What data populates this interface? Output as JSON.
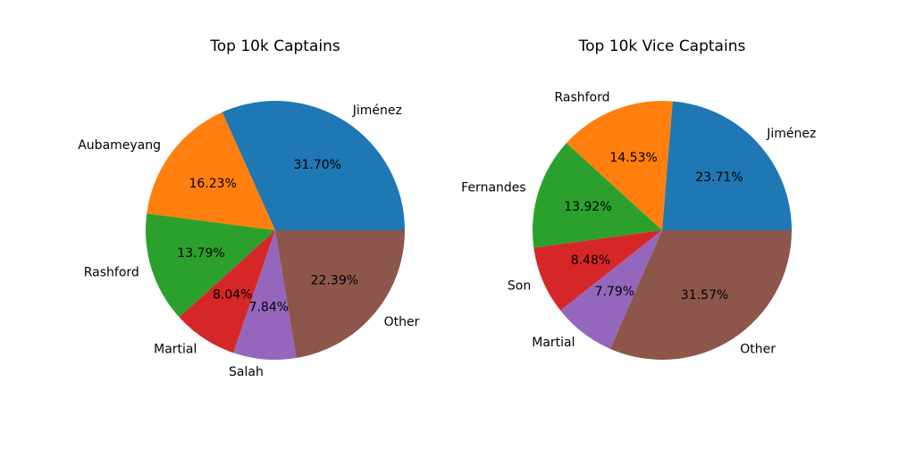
{
  "chart_data": [
    {
      "type": "pie",
      "title": "Top 10k Captains",
      "start_angle_deg": 0,
      "direction": "counterclockwise",
      "slices": [
        {
          "label": "Jiménez",
          "value": 31.7,
          "pct_text": "31.70%",
          "color": "#1f77b4"
        },
        {
          "label": "Aubameyang",
          "value": 16.23,
          "pct_text": "16.23%",
          "color": "#ff7f0e"
        },
        {
          "label": "Rashford",
          "value": 13.79,
          "pct_text": "13.79%",
          "color": "#2ca02c"
        },
        {
          "label": "Martial",
          "value": 8.04,
          "pct_text": "8.04%",
          "color": "#d62728"
        },
        {
          "label": "Salah",
          "value": 7.84,
          "pct_text": "7.84%",
          "color": "#9467bd"
        },
        {
          "label": "Other",
          "value": 22.39,
          "pct_text": "22.39%",
          "color": "#8c564b"
        }
      ]
    },
    {
      "type": "pie",
      "title": "Top 10k Vice Captains",
      "start_angle_deg": 0,
      "direction": "counterclockwise",
      "slices": [
        {
          "label": "Jiménez",
          "value": 23.71,
          "pct_text": "23.71%",
          "color": "#1f77b4"
        },
        {
          "label": "Rashford",
          "value": 14.53,
          "pct_text": "14.53%",
          "color": "#ff7f0e"
        },
        {
          "label": "Fernandes",
          "value": 13.92,
          "pct_text": "13.92%",
          "color": "#2ca02c"
        },
        {
          "label": "Son",
          "value": 8.48,
          "pct_text": "8.48%",
          "color": "#d62728"
        },
        {
          "label": "Martial",
          "value": 7.79,
          "pct_text": "7.79%",
          "color": "#9467bd"
        },
        {
          "label": "Other",
          "value": 31.57,
          "pct_text": "31.57%",
          "color": "#8c564b"
        }
      ]
    }
  ]
}
